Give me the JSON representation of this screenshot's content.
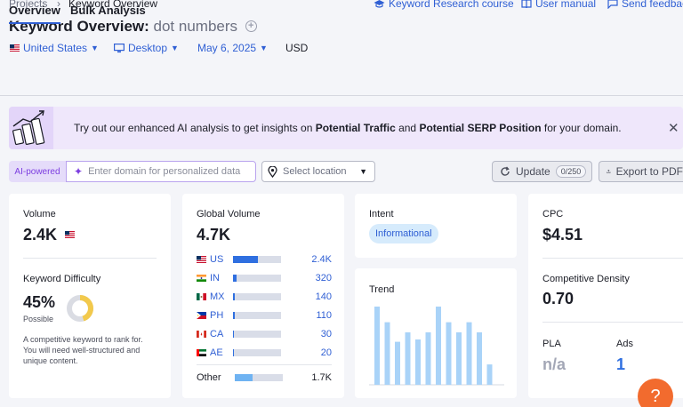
{
  "breadcrumb": {
    "root": "Projects",
    "current": "Keyword Overview"
  },
  "top_links": {
    "course": "Keyword Research course",
    "manual": "User manual",
    "feedback": "Send feedback"
  },
  "header": {
    "title_prefix": "Keyword Overview:",
    "keyword": "dot numbers"
  },
  "filters": {
    "country": "United States",
    "device": "Desktop",
    "date": "May 6, 2025",
    "currency": "USD"
  },
  "tabs": [
    "Overview",
    "Bulk Analysis"
  ],
  "banner": {
    "text_start": "Try out our enhanced AI analysis to get insights on ",
    "bold1": "Potential Traffic",
    "text_mid": " and ",
    "bold2": "Potential SERP Position",
    "text_end": " for your domain."
  },
  "ai_bar": {
    "badge": "AI-powered",
    "domain_placeholder": "Enter domain for personalized data",
    "location_placeholder": "Select location",
    "update_label": "Update",
    "update_count": "0/250",
    "export_label": "Export to PDF"
  },
  "volume": {
    "label": "Volume",
    "value": "2.4K"
  },
  "difficulty": {
    "label": "Keyword Difficulty",
    "value": "45%",
    "level": "Possible",
    "percent": 45,
    "description": "A competitive keyword to rank for. You will need well-structured and unique content."
  },
  "global_volume": {
    "label": "Global Volume",
    "value": "4.7K",
    "rows": [
      {
        "code": "US",
        "value": "2.4K",
        "share": 0.52
      },
      {
        "code": "IN",
        "value": "320",
        "share": 0.07
      },
      {
        "code": "MX",
        "value": "140",
        "share": 0.04
      },
      {
        "code": "PH",
        "value": "110",
        "share": 0.03
      },
      {
        "code": "CA",
        "value": "30",
        "share": 0.01
      },
      {
        "code": "AE",
        "value": "20",
        "share": 0.01
      }
    ],
    "other": {
      "label": "Other",
      "value": "1.7K",
      "share": 0.37
    }
  },
  "intent": {
    "label": "Intent",
    "badge": "Informational"
  },
  "trend": {
    "label": "Trend",
    "values": [
      1.0,
      0.8,
      0.55,
      0.67,
      0.58,
      0.67,
      1.0,
      0.8,
      0.67,
      0.8,
      0.67,
      0.26
    ]
  },
  "cpc": {
    "label": "CPC",
    "value": "$4.51"
  },
  "competitive_density": {
    "label": "Competitive Density",
    "value": "0.70"
  },
  "pla": {
    "label": "PLA",
    "value": "n/a"
  },
  "ads": {
    "label": "Ads",
    "value": "1"
  },
  "help": {
    "label": "?"
  },
  "colors": {
    "accent": "#2f5fd4",
    "bar": "#2f6fe0",
    "trend_bar": "#a9d3f8",
    "difficulty": "#f2c94c",
    "help": "#f26b2e"
  }
}
